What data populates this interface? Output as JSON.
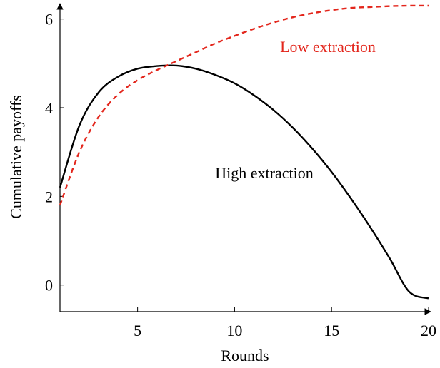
{
  "chart_data": {
    "type": "line",
    "title": "",
    "xlabel": "Rounds",
    "ylabel": "Cumulative payoffs",
    "xlim": [
      1,
      20
    ],
    "ylim": [
      -0.6,
      6.3
    ],
    "xticks": [
      5,
      10,
      15,
      20
    ],
    "yticks": [
      0,
      2,
      4,
      6
    ],
    "grid": false,
    "series": [
      {
        "name": "High extraction",
        "color": "#000000",
        "style": "solid",
        "x": [
          1,
          2,
          3,
          4,
          5,
          6,
          7,
          8,
          9,
          10,
          11,
          12,
          13,
          14,
          15,
          16,
          17,
          18,
          19,
          20
        ],
        "y": [
          2.2,
          3.6,
          4.35,
          4.7,
          4.88,
          4.94,
          4.95,
          4.88,
          4.74,
          4.55,
          4.28,
          3.95,
          3.55,
          3.08,
          2.55,
          1.95,
          1.3,
          0.6,
          -0.15,
          -0.3
        ]
      },
      {
        "name": "Low extraction",
        "color": "#e3261c",
        "style": "dashed",
        "x": [
          1,
          2,
          3,
          4,
          5,
          6,
          7,
          8,
          9,
          10,
          11,
          12,
          13,
          14,
          15,
          16,
          17,
          18,
          19,
          20
        ],
        "y": [
          1.8,
          3.0,
          3.8,
          4.3,
          4.62,
          4.85,
          5.05,
          5.25,
          5.45,
          5.62,
          5.78,
          5.92,
          6.04,
          6.13,
          6.2,
          6.25,
          6.27,
          6.29,
          6.3,
          6.3
        ]
      }
    ],
    "annotations": [
      {
        "text": "Low extraction",
        "color": "#e3261c"
      },
      {
        "text": "High extraction",
        "color": "#000000"
      }
    ]
  }
}
